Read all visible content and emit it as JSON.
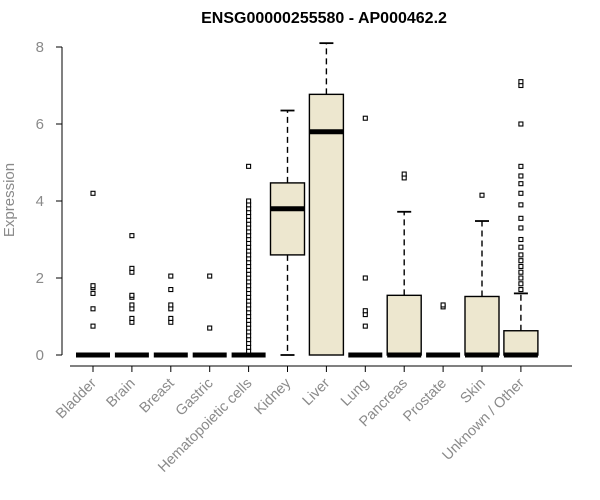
{
  "chart_data": {
    "type": "boxplot",
    "title": "ENSG00000255580 - AP000462.2",
    "xlabel": "",
    "ylabel": "Expression",
    "ylim": [
      0,
      8
    ],
    "yticks": [
      0,
      2,
      4,
      6,
      8
    ],
    "grid": false,
    "legend": "none",
    "box_fill": "#ede7cf",
    "categories": [
      "Bladder",
      "Brain",
      "Breast",
      "Gastric",
      "Hematopoietic cells",
      "Kidney",
      "Liver",
      "Lung",
      "Pancreas",
      "Prostate",
      "Skin",
      "Unknown / Other"
    ],
    "boxes": [
      {
        "q1": 0,
        "median": 0,
        "q3": 0,
        "whisker_low": 0,
        "whisker_high": 0,
        "outliers": [
          0.75,
          1.2,
          1.6,
          1.75,
          1.8,
          4.2
        ]
      },
      {
        "q1": 0,
        "median": 0,
        "q3": 0,
        "whisker_low": 0,
        "whisker_high": 0,
        "outliers": [
          0.85,
          0.95,
          1.2,
          1.3,
          1.5,
          1.55,
          2.15,
          2.25,
          3.1
        ]
      },
      {
        "q1": 0,
        "median": 0,
        "q3": 0,
        "whisker_low": 0,
        "whisker_high": 0,
        "outliers": [
          0.85,
          0.95,
          1.2,
          1.3,
          1.7,
          2.05
        ]
      },
      {
        "q1": 0,
        "median": 0,
        "q3": 0,
        "whisker_low": 0,
        "whisker_high": 0,
        "outliers": [
          0.7,
          2.05
        ]
      },
      {
        "q1": 0,
        "median": 0,
        "q3": 0,
        "whisker_low": 0,
        "whisker_high": 0,
        "outliers": [
          0.1,
          0.2,
          0.3,
          0.4,
          0.5,
          0.6,
          0.7,
          0.8,
          0.9,
          1.0,
          1.1,
          1.2,
          1.3,
          1.4,
          1.5,
          1.6,
          1.7,
          1.8,
          1.9,
          2.0,
          2.1,
          2.2,
          2.3,
          2.4,
          2.5,
          2.6,
          2.7,
          2.8,
          2.9,
          3.0,
          3.1,
          3.2,
          3.3,
          3.4,
          3.5,
          3.6,
          3.7,
          3.8,
          3.9,
          4.0,
          4.9
        ]
      },
      {
        "q1": 2.6,
        "median": 3.8,
        "q3": 4.47,
        "whisker_low": 0,
        "whisker_high": 6.35,
        "outliers": []
      },
      {
        "q1": 0,
        "median": 5.8,
        "q3": 6.77,
        "whisker_low": 0,
        "whisker_high": 8.1,
        "outliers": []
      },
      {
        "q1": 0,
        "median": 0,
        "q3": 0,
        "whisker_low": 0,
        "whisker_high": 0,
        "outliers": [
          0.75,
          1.05,
          1.15,
          2.0,
          6.15
        ]
      },
      {
        "q1": 0,
        "median": 0,
        "q3": 1.55,
        "whisker_low": 0,
        "whisker_high": 3.72,
        "outliers": [
          4.6,
          4.7
        ]
      },
      {
        "q1": 0,
        "median": 0,
        "q3": 0,
        "whisker_low": 0,
        "whisker_high": 0,
        "outliers": [
          1.25,
          1.3
        ]
      },
      {
        "q1": 0,
        "median": 0,
        "q3": 1.52,
        "whisker_low": 0,
        "whisker_high": 3.48,
        "outliers": [
          4.15
        ]
      },
      {
        "q1": 0,
        "median": 0,
        "q3": 0.63,
        "whisker_low": 0,
        "whisker_high": 1.6,
        "outliers": [
          1.7,
          1.85,
          2.0,
          2.15,
          2.3,
          2.45,
          2.6,
          2.8,
          3.0,
          3.3,
          3.55,
          3.9,
          4.2,
          4.45,
          4.65,
          4.9,
          6.0,
          7.0,
          7.1
        ]
      }
    ]
  }
}
